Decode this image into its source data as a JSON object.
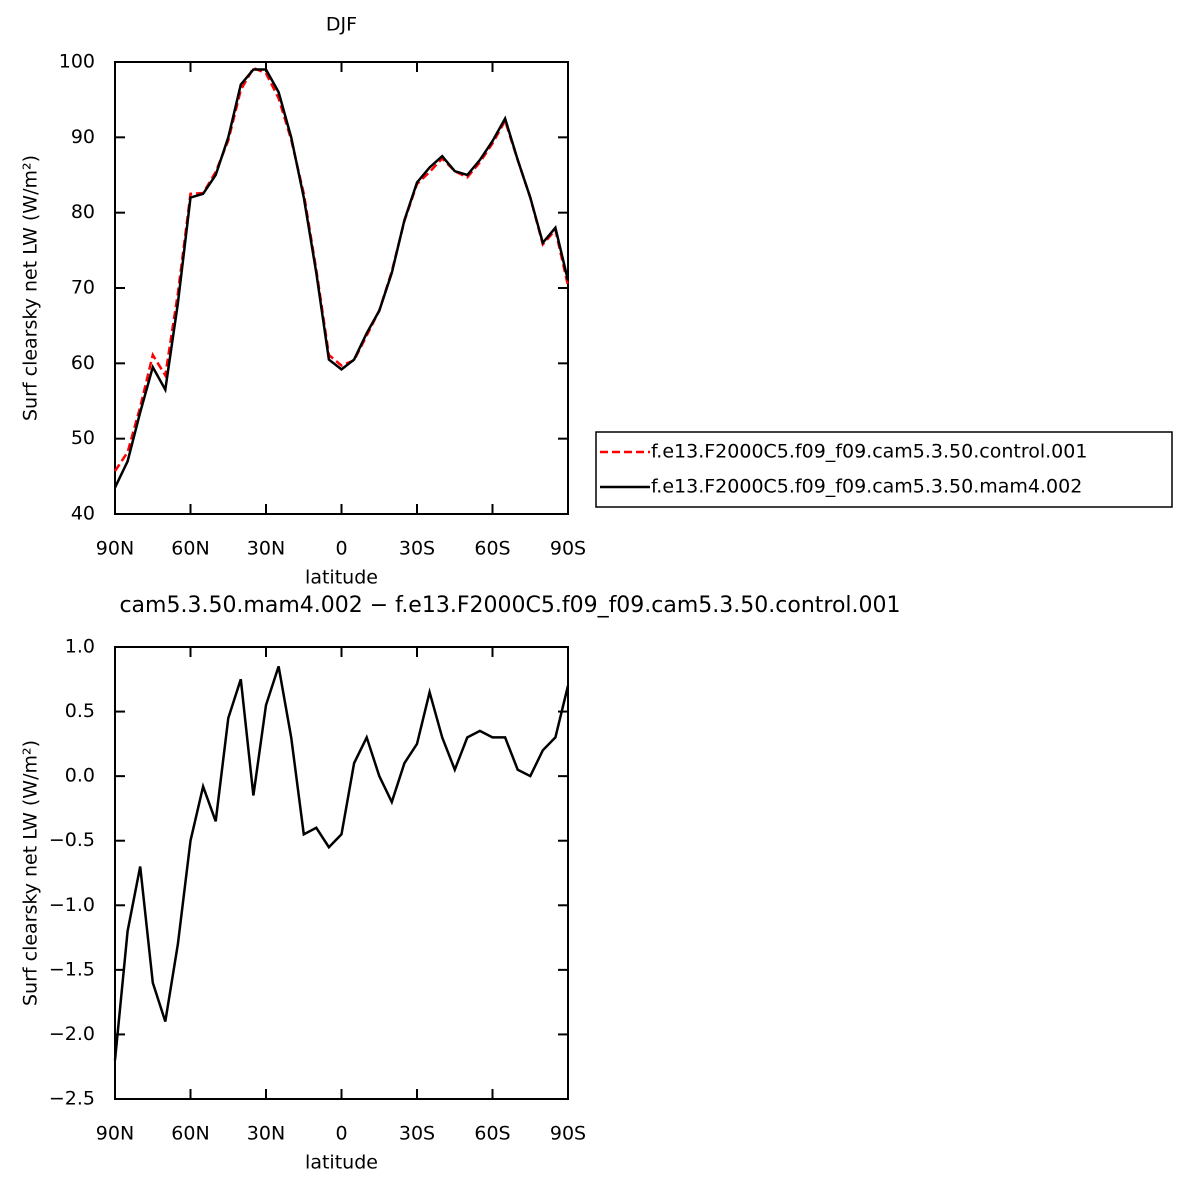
{
  "chart_data": [
    {
      "type": "line",
      "title": "DJF",
      "xlabel": "latitude",
      "ylabel": "Surf clearsky net LW (W/m²)",
      "x": [
        90,
        85,
        80,
        75,
        70,
        65,
        60,
        55,
        50,
        45,
        40,
        35,
        30,
        25,
        20,
        15,
        10,
        5,
        0,
        -5,
        -10,
        -15,
        -20,
        -25,
        -30,
        -35,
        -40,
        -45,
        -50,
        -55,
        -60,
        -65,
        -70,
        -75,
        -80,
        -85,
        -90
      ],
      "series": [
        {
          "name": "f.e13.F2000C5.f09_f09.cam5.3.50.control.001",
          "color": "#ff0000",
          "line_style": "dashed",
          "values": [
            45.7,
            48.2,
            54.2,
            61.1,
            58.4,
            69.3,
            82.5,
            82.6,
            85.4,
            89.6,
            96.3,
            99.2,
            98.5,
            95.2,
            89.7,
            82.5,
            72.4,
            61.1,
            59.7,
            60.4,
            63.7,
            67,
            72.2,
            78.9,
            83.8,
            85.4,
            87.2,
            85.5,
            84.7,
            86.7,
            89.2,
            92.2,
            87,
            82,
            75.8,
            77.7,
            70.3
          ]
        },
        {
          "name": "f.e13.F2000C5.f09_f09.cam5.3.50.mam4.002",
          "color": "#000000",
          "line_style": "solid",
          "values": [
            43.5,
            47,
            53.5,
            59.5,
            56.5,
            68,
            82,
            82.5,
            85,
            90,
            97,
            99,
            99,
            96,
            90,
            82,
            72,
            60.5,
            59.2,
            60.5,
            64,
            67,
            72,
            79,
            84,
            86,
            87.5,
            85.5,
            85,
            87,
            89.5,
            92.5,
            87,
            82,
            76,
            78,
            71
          ]
        }
      ],
      "xlim": [
        90,
        -90
      ],
      "xticks": [
        {
          "value": 90,
          "label": "90N"
        },
        {
          "value": 60,
          "label": "60N"
        },
        {
          "value": 30,
          "label": "30N"
        },
        0,
        {
          "value": -30,
          "label": "30S"
        },
        {
          "value": -60,
          "label": "60S"
        },
        {
          "value": -90,
          "label": "90S"
        }
      ],
      "ylim": [
        40,
        100
      ],
      "yticks": [
        40,
        50,
        60,
        70,
        80,
        90,
        100
      ],
      "legend": "right"
    },
    {
      "type": "line",
      "title": "cam5.3.50.mam4.002 − f.e13.F2000C5.f09_f09.cam5.3.50.control.001",
      "xlabel": "latitude",
      "ylabel": "Surf clearsky net LW (W/m²)",
      "x": [
        90,
        85,
        80,
        75,
        70,
        65,
        60,
        55,
        50,
        45,
        40,
        35,
        30,
        25,
        20,
        15,
        10,
        5,
        0,
        -5,
        -10,
        -15,
        -20,
        -25,
        -30,
        -35,
        -40,
        -45,
        -50,
        -55,
        -60,
        -65,
        -70,
        -75,
        -80,
        -85,
        -90
      ],
      "series": [
        {
          "name": null,
          "color": "#000000",
          "line_style": "solid",
          "values": [
            -2.2,
            -1.2,
            -0.7,
            -1.6,
            -1.9,
            -1.3,
            -0.5,
            -0.08,
            -0.35,
            0.45,
            0.75,
            -0.15,
            0.55,
            0.85,
            0.3,
            -0.45,
            -0.4,
            -0.55,
            -0.45,
            0.1,
            0.3,
            0,
            -0.2,
            0.1,
            0.25,
            0.65,
            0.3,
            0.05,
            0.3,
            0.35,
            0.3,
            0.3,
            0.05,
            0,
            0.2,
            0.3,
            0.7
          ]
        }
      ],
      "xlim": [
        90,
        -90
      ],
      "xticks": [
        {
          "value": 90,
          "label": "90N"
        },
        {
          "value": 60,
          "label": "60N"
        },
        {
          "value": 30,
          "label": "30N"
        },
        0,
        {
          "value": -30,
          "label": "30S"
        },
        {
          "value": -60,
          "label": "60S"
        },
        {
          "value": -90,
          "label": "90S"
        }
      ],
      "ylim": [
        -2.5,
        1
      ],
      "yticks": [
        {
          "value": -2.5,
          "label": "−2.5"
        },
        {
          "value": -2,
          "label": "−2.0"
        },
        {
          "value": -1.5,
          "label": "−1.5"
        },
        {
          "value": -1,
          "label": "−1.0"
        },
        {
          "value": -0.5,
          "label": "−0.5"
        },
        {
          "value": 0,
          "label": "0.0"
        },
        0.5,
        {
          "value": 1,
          "label": "1.0"
        }
      ]
    }
  ]
}
